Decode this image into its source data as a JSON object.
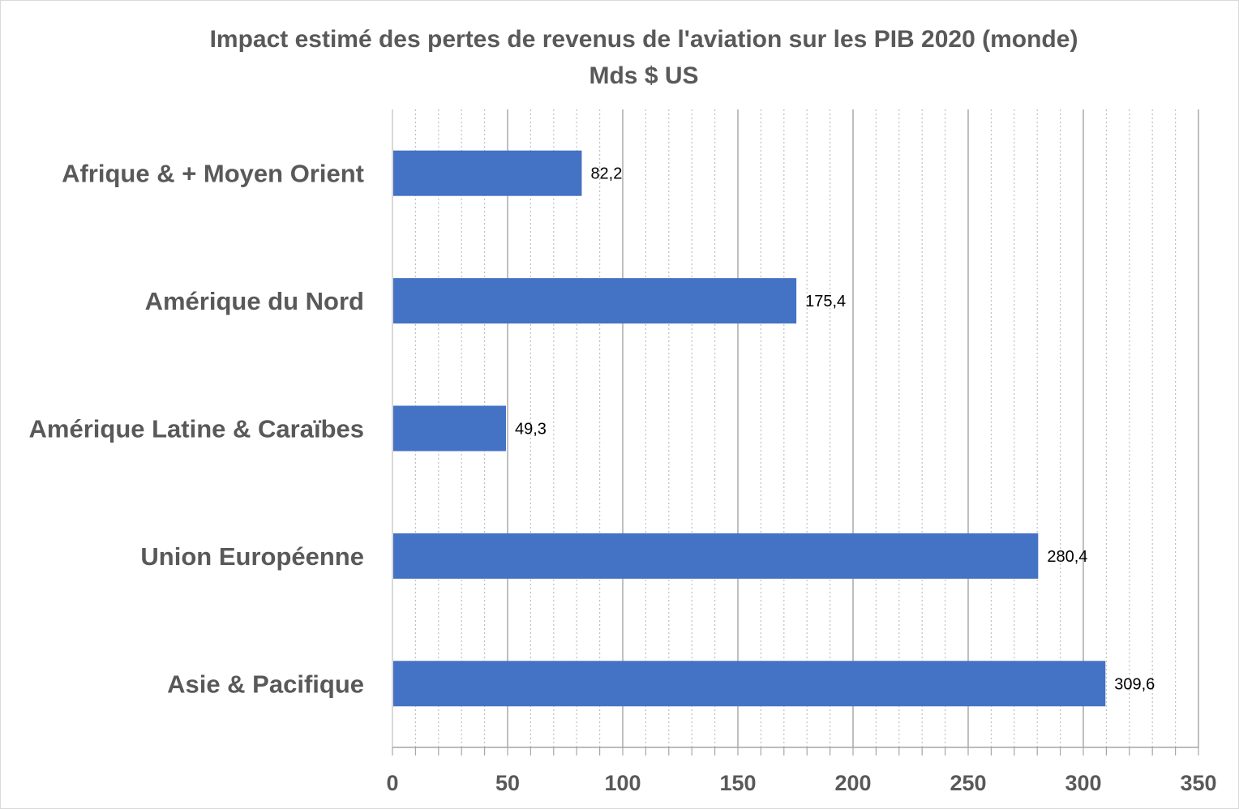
{
  "chart_data": {
    "type": "bar",
    "orientation": "horizontal",
    "title": "Impact estimé des pertes de revenus de l'aviation sur les PIB 2020 (monde)",
    "subtitle": "Mds $ US",
    "categories": [
      "Afrique & + Moyen Orient",
      "Amérique du Nord",
      "Amérique Latine & Caraïbes",
      "Union Européenne",
      "Asie & Pacifique"
    ],
    "values": [
      82.2,
      175.4,
      49.3,
      280.4,
      309.6
    ],
    "data_labels": [
      "82,2",
      "175,4",
      "49,3",
      "280,4",
      "309,6"
    ],
    "xlim": [
      0,
      350
    ],
    "xticks": [
      "0",
      "50",
      "100",
      "150",
      "200",
      "250",
      "300",
      "350"
    ],
    "xtick_values": [
      0,
      50,
      100,
      150,
      200,
      250,
      300,
      350
    ],
    "minor_step": 10,
    "grid": true,
    "bar_color": "#4472c4",
    "xlabel": "",
    "ylabel": ""
  }
}
